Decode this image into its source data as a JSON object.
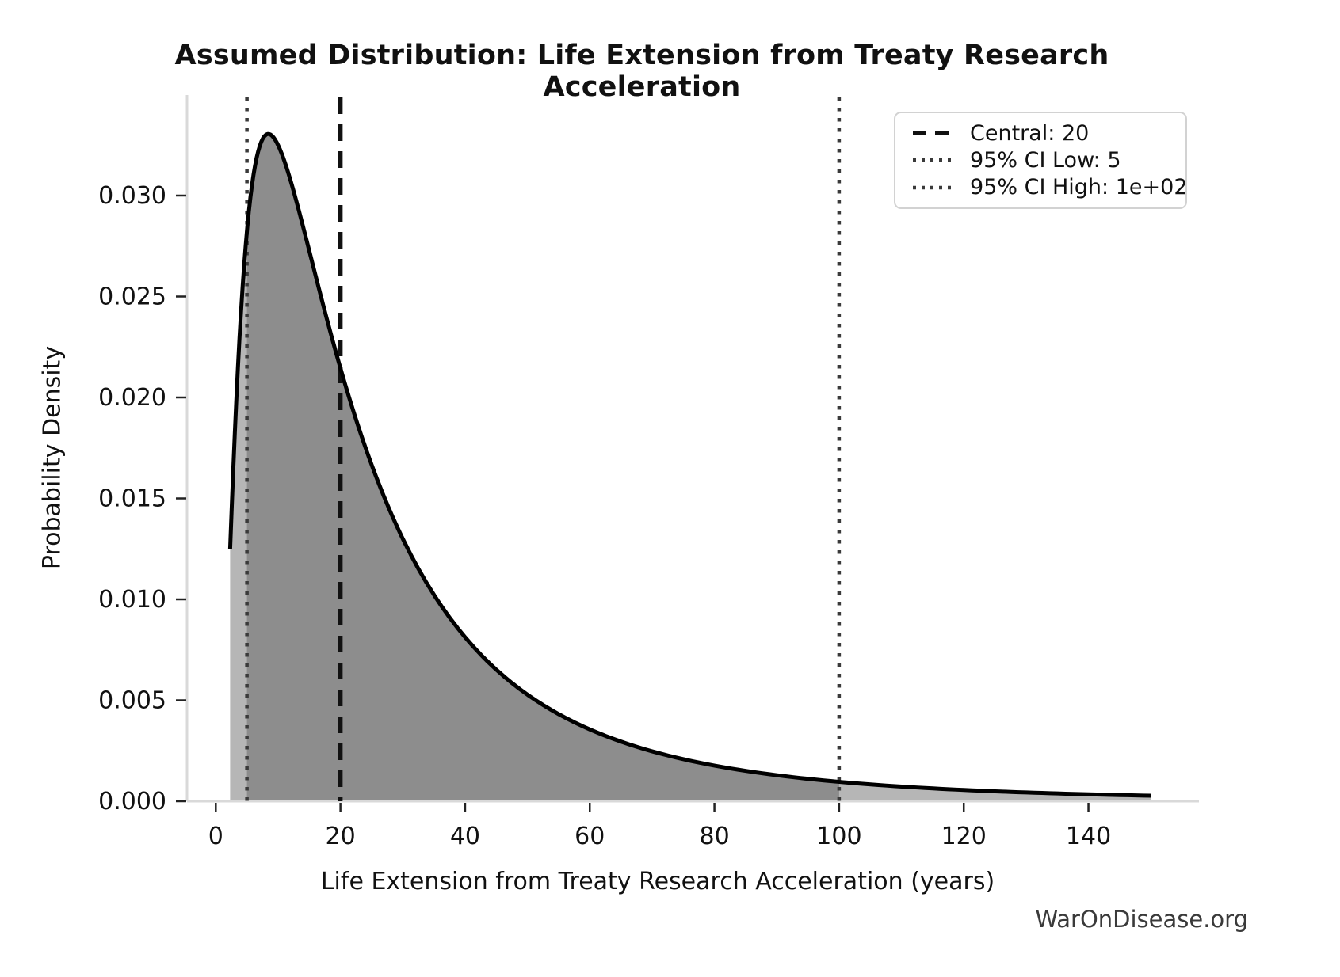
{
  "title": "Assumed Distribution: Life Extension from Treaty Research Acceleration",
  "watermark": "WarOnDisease.org",
  "chart_data": {
    "type": "area",
    "title": "Assumed Distribution: Life Extension from Treaty Research Acceleration",
    "xlabel": "Life Extension from Treaty Research Acceleration (years)",
    "ylabel": "Probability Density",
    "x_ticks": [
      0,
      20,
      40,
      60,
      80,
      100,
      120,
      140
    ],
    "y_tick_labels": [
      "0.000",
      "0.005",
      "0.010",
      "0.015",
      "0.020",
      "0.025",
      "0.030"
    ],
    "y_tick_values": [
      0,
      0.005,
      0.01,
      0.015,
      0.02,
      0.025,
      0.03
    ],
    "xlim": [
      -4.6,
      157.7
    ],
    "ylim": [
      0,
      0.03486
    ],
    "grid": false,
    "legend_position": "upper right",
    "distribution": {
      "family": "lognormal",
      "central": 20,
      "sigma": 0.93,
      "ci_low": 5,
      "ci_high": 100,
      "x_start": 2.3,
      "x_end": 150
    },
    "markers": {
      "central": {
        "value": 20,
        "label": "Central: 20",
        "style": "dashed"
      },
      "ci_low": {
        "value": 5,
        "label": "95% CI Low: 5",
        "style": "dotted"
      },
      "ci_high": {
        "value": 100,
        "label": "95% CI High: 1e+02",
        "style": "dotted"
      }
    },
    "legend": [
      {
        "label": "Central: 20",
        "style": "dashed"
      },
      {
        "label": "95% CI Low: 5",
        "style": "dotted"
      },
      {
        "label": "95% CI High: 1e+02",
        "style": "dotted"
      }
    ],
    "curve": {
      "x": [
        2.3,
        3,
        4,
        5,
        6,
        7,
        8,
        9,
        10,
        12,
        14,
        16,
        18,
        20,
        24,
        28,
        32,
        36,
        40,
        45,
        50,
        55,
        60,
        70,
        80,
        90,
        100,
        110,
        120,
        130,
        140,
        150
      ],
      "y": [
        0.0125,
        0.0179,
        0.024,
        0.0282,
        0.0309,
        0.0324,
        0.033,
        0.033,
        0.0325,
        0.0307,
        0.0285,
        0.0261,
        0.0237,
        0.0214,
        0.0175,
        0.0143,
        0.0118,
        0.0098,
        0.0081,
        0.0065,
        0.0053,
        0.0043,
        0.0036,
        0.0025,
        0.0018,
        0.0013,
        0.001,
        0.0007,
        0.0006,
        0.0004,
        0.0003,
        0.0003
      ]
    },
    "colors": {
      "fill_inner": "#8d8d8d",
      "fill_outer": "#b6b6b6",
      "curve": "#000000",
      "central_line": "#111111",
      "ci_line": "#3a3a3a",
      "spine": "#d9d9d9",
      "tick": "#222222",
      "text": "#111111",
      "watermark": "#3a3a3a"
    }
  }
}
